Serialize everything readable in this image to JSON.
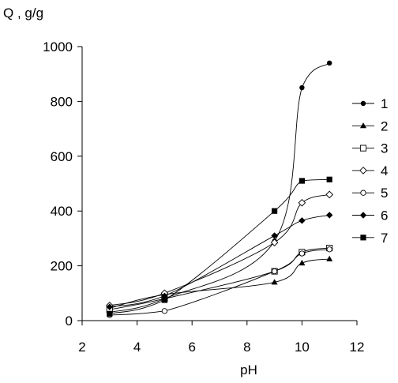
{
  "chart_data": {
    "type": "line",
    "title": "",
    "xlabel": "pH",
    "ylabel": "Q , g/g",
    "xlim": [
      2,
      12
    ],
    "ylim": [
      0,
      1000
    ],
    "xticks": [
      2,
      4,
      6,
      8,
      10,
      12
    ],
    "yticks": [
      0,
      200,
      400,
      600,
      800,
      1000
    ],
    "grid": false,
    "legend_position": "right",
    "smooth": true,
    "series": [
      {
        "name": "1",
        "marker": "filled-circle",
        "x": [
          3,
          5,
          9,
          10,
          11
        ],
        "y": [
          30,
          80,
          290,
          850,
          940
        ]
      },
      {
        "name": "2",
        "marker": "filled-triangle",
        "x": [
          3,
          5,
          9,
          10,
          11
        ],
        "y": [
          45,
          95,
          140,
          210,
          225
        ]
      },
      {
        "name": "3",
        "marker": "open-square",
        "x": [
          3,
          5,
          9,
          10,
          11
        ],
        "y": [
          40,
          80,
          180,
          250,
          265
        ]
      },
      {
        "name": "4",
        "marker": "open-diamond",
        "x": [
          3,
          5,
          9,
          10,
          11
        ],
        "y": [
          55,
          100,
          285,
          430,
          460
        ]
      },
      {
        "name": "5",
        "marker": "open-circle",
        "x": [
          3,
          5,
          9,
          10,
          11
        ],
        "y": [
          20,
          35,
          180,
          245,
          260
        ]
      },
      {
        "name": "6",
        "marker": "filled-diamond",
        "x": [
          3,
          5,
          9,
          10,
          11
        ],
        "y": [
          50,
          90,
          310,
          365,
          385
        ]
      },
      {
        "name": "7",
        "marker": "filled-square",
        "x": [
          3,
          5,
          9,
          10,
          11
        ],
        "y": [
          25,
          75,
          400,
          510,
          515
        ]
      }
    ]
  }
}
